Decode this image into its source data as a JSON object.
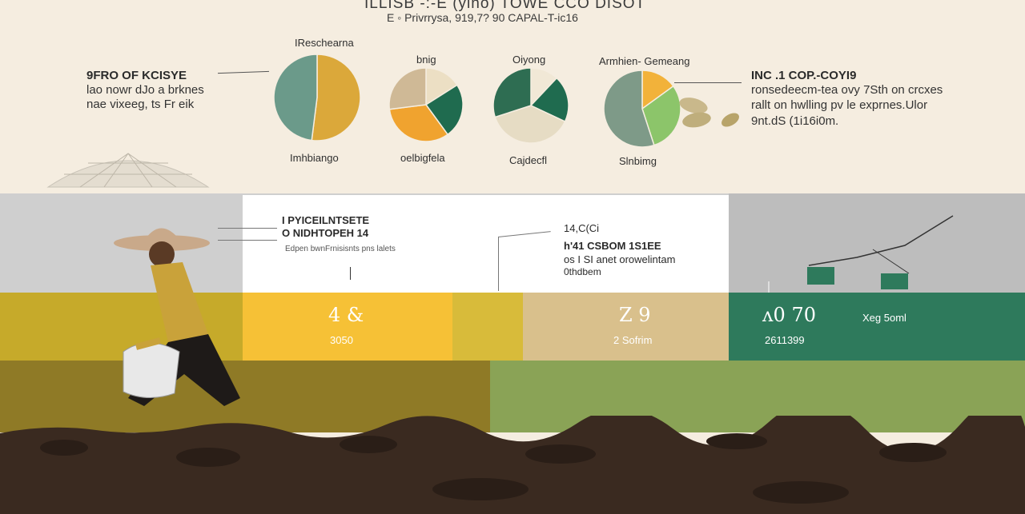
{
  "header": {
    "line1": "ILLISB -:-E  (yino)  TOWE  CCO DISOT",
    "line2": "E  ◦ Privrrysa,  919,7?  90  CAPAL-T-ic16"
  },
  "left_panel": {
    "title": "9FRO OF KCISYE",
    "lines": [
      "lao nowr dJo a brknes",
      "nae vixeeg, ts Fr eik"
    ]
  },
  "right_panel": {
    "title": "INC .1 COP.-COYI9",
    "lines": [
      "ronsedeecm-tea ovy 7Sth on crcxes",
      "rallt on hwlling pv le exprnes.Ulor",
      "9nt.dS (1i16i0m."
    ]
  },
  "chart_data": [
    {
      "type": "pie",
      "title": "IReschearna",
      "caption": "Imhbiango",
      "values": [
        52,
        48
      ],
      "colors": [
        "#dba83a",
        "#6b9a8a"
      ]
    },
    {
      "type": "pie",
      "title": "bnig",
      "caption": "oelbigfela",
      "values": [
        16,
        24,
        33,
        27
      ],
      "colors": [
        "#ecdfc4",
        "#1f6b4f",
        "#f0a32f",
        "#cfb996"
      ]
    },
    {
      "type": "pie",
      "title": "Oiyong",
      "caption": "Cajdecfl",
      "values": [
        12,
        20,
        38,
        30
      ],
      "colors": [
        "#f1e8d6",
        "#1f6b4f",
        "#e6dcc4",
        "#2e6d52"
      ]
    },
    {
      "type": "pie",
      "title": "Armhien- Gemeang",
      "caption": "Slnbimg",
      "values": [
        15,
        30,
        55
      ],
      "colors": [
        "#f2b23a",
        "#8cc56a",
        "#7e9a88"
      ]
    }
  ],
  "mid_panel_left": {
    "title1": "I PYICEILNTSETE",
    "title2": "O NIDHTOPEH  14",
    "sub": "Edpen bwnFrnisisnts pns lalets"
  },
  "mid_panel_center": {
    "l1": "14,C(Ci",
    "l2": "h'41 CSBOM 1S1EE",
    "l3": "os I SI anet orowelintam",
    "l4": "0thdbem"
  },
  "stats": [
    {
      "value": "4 &",
      "sub": "3050"
    },
    {
      "value": "Z 9",
      "sub": "2 Sofrim"
    },
    {
      "value": "ʌ0 70",
      "sub": "2611399"
    }
  ],
  "stat_side_label": "Xeg 5oml",
  "colors": {
    "background": "#f5ede0",
    "gray_band": "#cfcfcf",
    "yellow": "#f6c136",
    "mustard": "#d8bb3a",
    "sand": "#d9c08c",
    "green": "#2e7a5c",
    "olive": "#8f7a26",
    "light_green": "#8aa356",
    "soil": "#3a2a20"
  }
}
